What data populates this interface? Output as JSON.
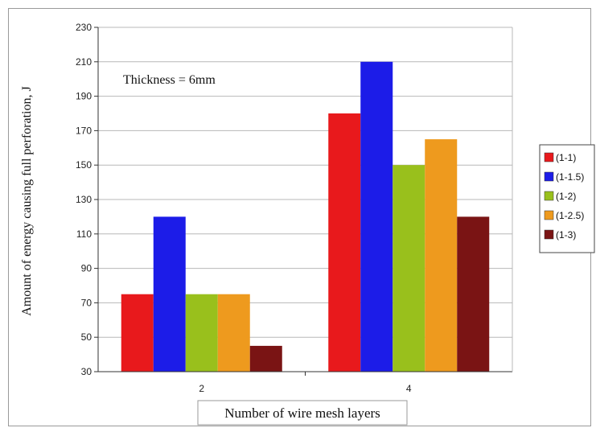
{
  "chart_data": {
    "type": "bar",
    "categories": [
      "2",
      "4"
    ],
    "series": [
      {
        "name": "(1-1)",
        "values": [
          75,
          180
        ],
        "color": "#e8191c"
      },
      {
        "name": "(1-1.5)",
        "values": [
          120,
          210
        ],
        "color": "#1c1ce8"
      },
      {
        "name": "(1-2)",
        "values": [
          75,
          150
        ],
        "color": "#99c01c"
      },
      {
        "name": "(1-2.5)",
        "values": [
          75,
          165
        ],
        "color": "#ee9a1e"
      },
      {
        "name": "(1-3)",
        "values": [
          45,
          120
        ],
        "color": "#7a1414"
      }
    ],
    "ylim": [
      30,
      230
    ],
    "yticks": [
      30,
      50,
      70,
      90,
      110,
      130,
      150,
      170,
      190,
      210,
      230
    ],
    "xlabel": "Number of wire mesh layers",
    "ylabel": "Amount of energy causing full perforation, J",
    "annotation": "Thickness = 6mm",
    "grid": true,
    "legend_position": "right"
  }
}
